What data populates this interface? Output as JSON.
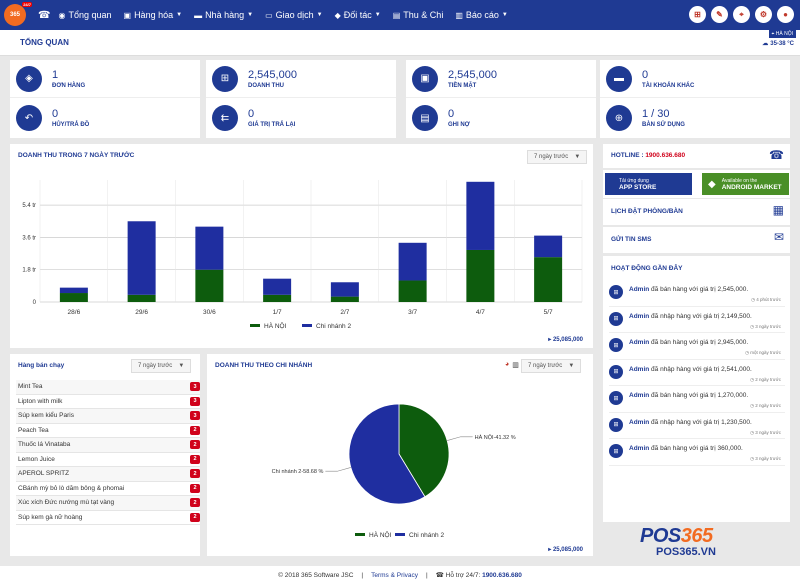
{
  "nav": {
    "logo_text": "365",
    "logo_badge": "24/7",
    "menu": [
      {
        "icon": "dashboard-icon",
        "glyph": "◉",
        "label": "Tổng quan",
        "caret": false
      },
      {
        "icon": "truck-icon",
        "glyph": "▣",
        "label": "Hàng hóa",
        "caret": true
      },
      {
        "icon": "store-icon",
        "glyph": "▬",
        "label": "Nhà hàng",
        "caret": true
      },
      {
        "icon": "cart-icon",
        "glyph": "▭",
        "label": "Giao dịch",
        "caret": true
      },
      {
        "icon": "users-icon",
        "glyph": "◆",
        "label": "Đối tác",
        "caret": true
      },
      {
        "icon": "money-icon",
        "glyph": "▤",
        "label": "Thu & Chi",
        "caret": false
      },
      {
        "icon": "report-icon",
        "glyph": "▥",
        "label": "Báo cáo",
        "caret": true
      }
    ]
  },
  "header": {
    "title": "TỔNG QUAN",
    "branch": "HÀ NỘI",
    "weather": "35-38 °C"
  },
  "stats": [
    {
      "icon": "tag-icon",
      "glyph": "◈",
      "value": "1",
      "label": "ĐƠN HÀNG"
    },
    {
      "icon": "cart-icon",
      "glyph": "⊞",
      "value": "2,545,000",
      "label": "DOANH THU"
    },
    {
      "icon": "cash-icon",
      "glyph": "▣",
      "value": "2,545,000",
      "label": "TIỀN MẶT"
    },
    {
      "icon": "visa-card-icon",
      "glyph": "▬",
      "value": "0",
      "label": "TÀI KHOẢN KHÁC"
    },
    {
      "icon": "reply-icon",
      "glyph": "↶",
      "value": "0",
      "label": "HỦY/TRẢ ĐỒ"
    },
    {
      "icon": "reply-all-icon",
      "glyph": "⇇",
      "value": "0",
      "label": "GIÁ TRỊ TRẢ LẠI"
    },
    {
      "icon": "id-card-icon",
      "glyph": "▤",
      "value": "0",
      "label": "GHI NỢ"
    },
    {
      "icon": "crosshair-icon",
      "glyph": "⊕",
      "value": "1 / 30",
      "label": "BÀN SỬ DỤNG"
    }
  ],
  "revenue": {
    "title": "DOANH THU TRONG 7 NGÀY TRƯỚC",
    "range": "7 ngày trước",
    "total": "25,085,000"
  },
  "chart_data": [
    {
      "type": "bar",
      "stacked": true,
      "categories": [
        "28/6",
        "29/6",
        "30/6",
        "1/7",
        "2/7",
        "3/7",
        "4/7",
        "5/7"
      ],
      "series": [
        {
          "name": "HÀ NỘI",
          "color": "#0d5c0d",
          "values": [
            0.5,
            0.4,
            1.8,
            0.4,
            0.3,
            1.2,
            2.9,
            2.5
          ]
        },
        {
          "name": "Chi nhánh 2",
          "color": "#1f2ea0",
          "values": [
            0.3,
            4.1,
            2.4,
            0.9,
            0.8,
            2.1,
            3.8,
            1.2
          ]
        }
      ],
      "yticks": [
        "0",
        "1.8 tr",
        "3.6 tr",
        "5.4 tr"
      ],
      "ytick_values": [
        0,
        1.8,
        3.6,
        5.4
      ],
      "ylim": [
        0,
        6.8
      ]
    },
    {
      "type": "pie",
      "labels": [
        "HÀ NỘI",
        "Chi nhánh 2"
      ],
      "label_texts": [
        "HÀ NỘI-41.32 %",
        "Chi nhánh 2-58.68 %"
      ],
      "values": [
        41.32,
        58.68
      ],
      "colors": [
        "#0d5c0d",
        "#1f2ea0"
      ]
    }
  ],
  "bestsellers": {
    "title": "Hàng bán chạy",
    "range": "7 ngày trước",
    "items": [
      {
        "name": "Mint Tea",
        "count": "3"
      },
      {
        "name": "Lipton with milk",
        "count": "3"
      },
      {
        "name": "Súp kem kiểu Paris",
        "count": "3"
      },
      {
        "name": "Peach Tea",
        "count": "2"
      },
      {
        "name": "Thuốc lá Vinataba",
        "count": "2"
      },
      {
        "name": "Lemon Juice",
        "count": "2"
      },
      {
        "name": "APEROL SPRITZ",
        "count": "2"
      },
      {
        "name": "CBánh mỳ bỏ lò dăm bông & phomai",
        "count": "2"
      },
      {
        "name": "Xúc xích Đức nướng mù tạt vàng",
        "count": "2"
      },
      {
        "name": "Súp kem gà nữ hoàng",
        "count": "2"
      }
    ]
  },
  "branch_revenue": {
    "title": "DOANH THU THEO CHI NHÁNH",
    "range": "7 ngày trước",
    "total": "25,085,000"
  },
  "sidebar": {
    "hotline_label": "HOTLINE : ",
    "hotline_number": "1900.636.680",
    "appstore_small": "Tải ứng dụng",
    "appstore_big": "APP STORE",
    "android_small": "Available on the",
    "android_big": "ANDROID MARKET",
    "booking": "LỊCH ĐẶT PHÒNG/BÀN",
    "sms": "GỬI TIN SMS",
    "activity_title": "HOẠT ĐỘNG GẦN ĐÂY",
    "activities": [
      {
        "user": "Admin",
        "text": " đã bán hàng với giá trị 2,545,000.",
        "time": "4 phút trước"
      },
      {
        "user": "Admin",
        "text": " đã nhập hàng với giá trị 2,149,500.",
        "time": "3 ngày trước"
      },
      {
        "user": "Admin",
        "text": " đã bán hàng với giá trị 2,945,000.",
        "time": "một ngày trước"
      },
      {
        "user": "Admin",
        "text": " đã nhập hàng với giá trị 2,541,000.",
        "time": "2 ngày trước"
      },
      {
        "user": "Admin",
        "text": " đã bán hàng với giá trị 1,270,000.",
        "time": "2 ngày trước"
      },
      {
        "user": "Admin",
        "text": " đã nhập hàng với giá trị 1,230,500.",
        "time": "3 ngày trước"
      },
      {
        "user": "Admin",
        "text": " đã bán hàng với giá trị 360,000.",
        "time": "3 ngày trước"
      }
    ]
  },
  "brand": {
    "name_a": "POS",
    "name_b": "365",
    "url": "POS365.VN"
  },
  "footer": {
    "copyright": "© 2018 365 Software JSC",
    "terms": "Terms & Privacy",
    "support_label": "Hỗ trợ 24/7: ",
    "support_number": "1900.636.680"
  }
}
